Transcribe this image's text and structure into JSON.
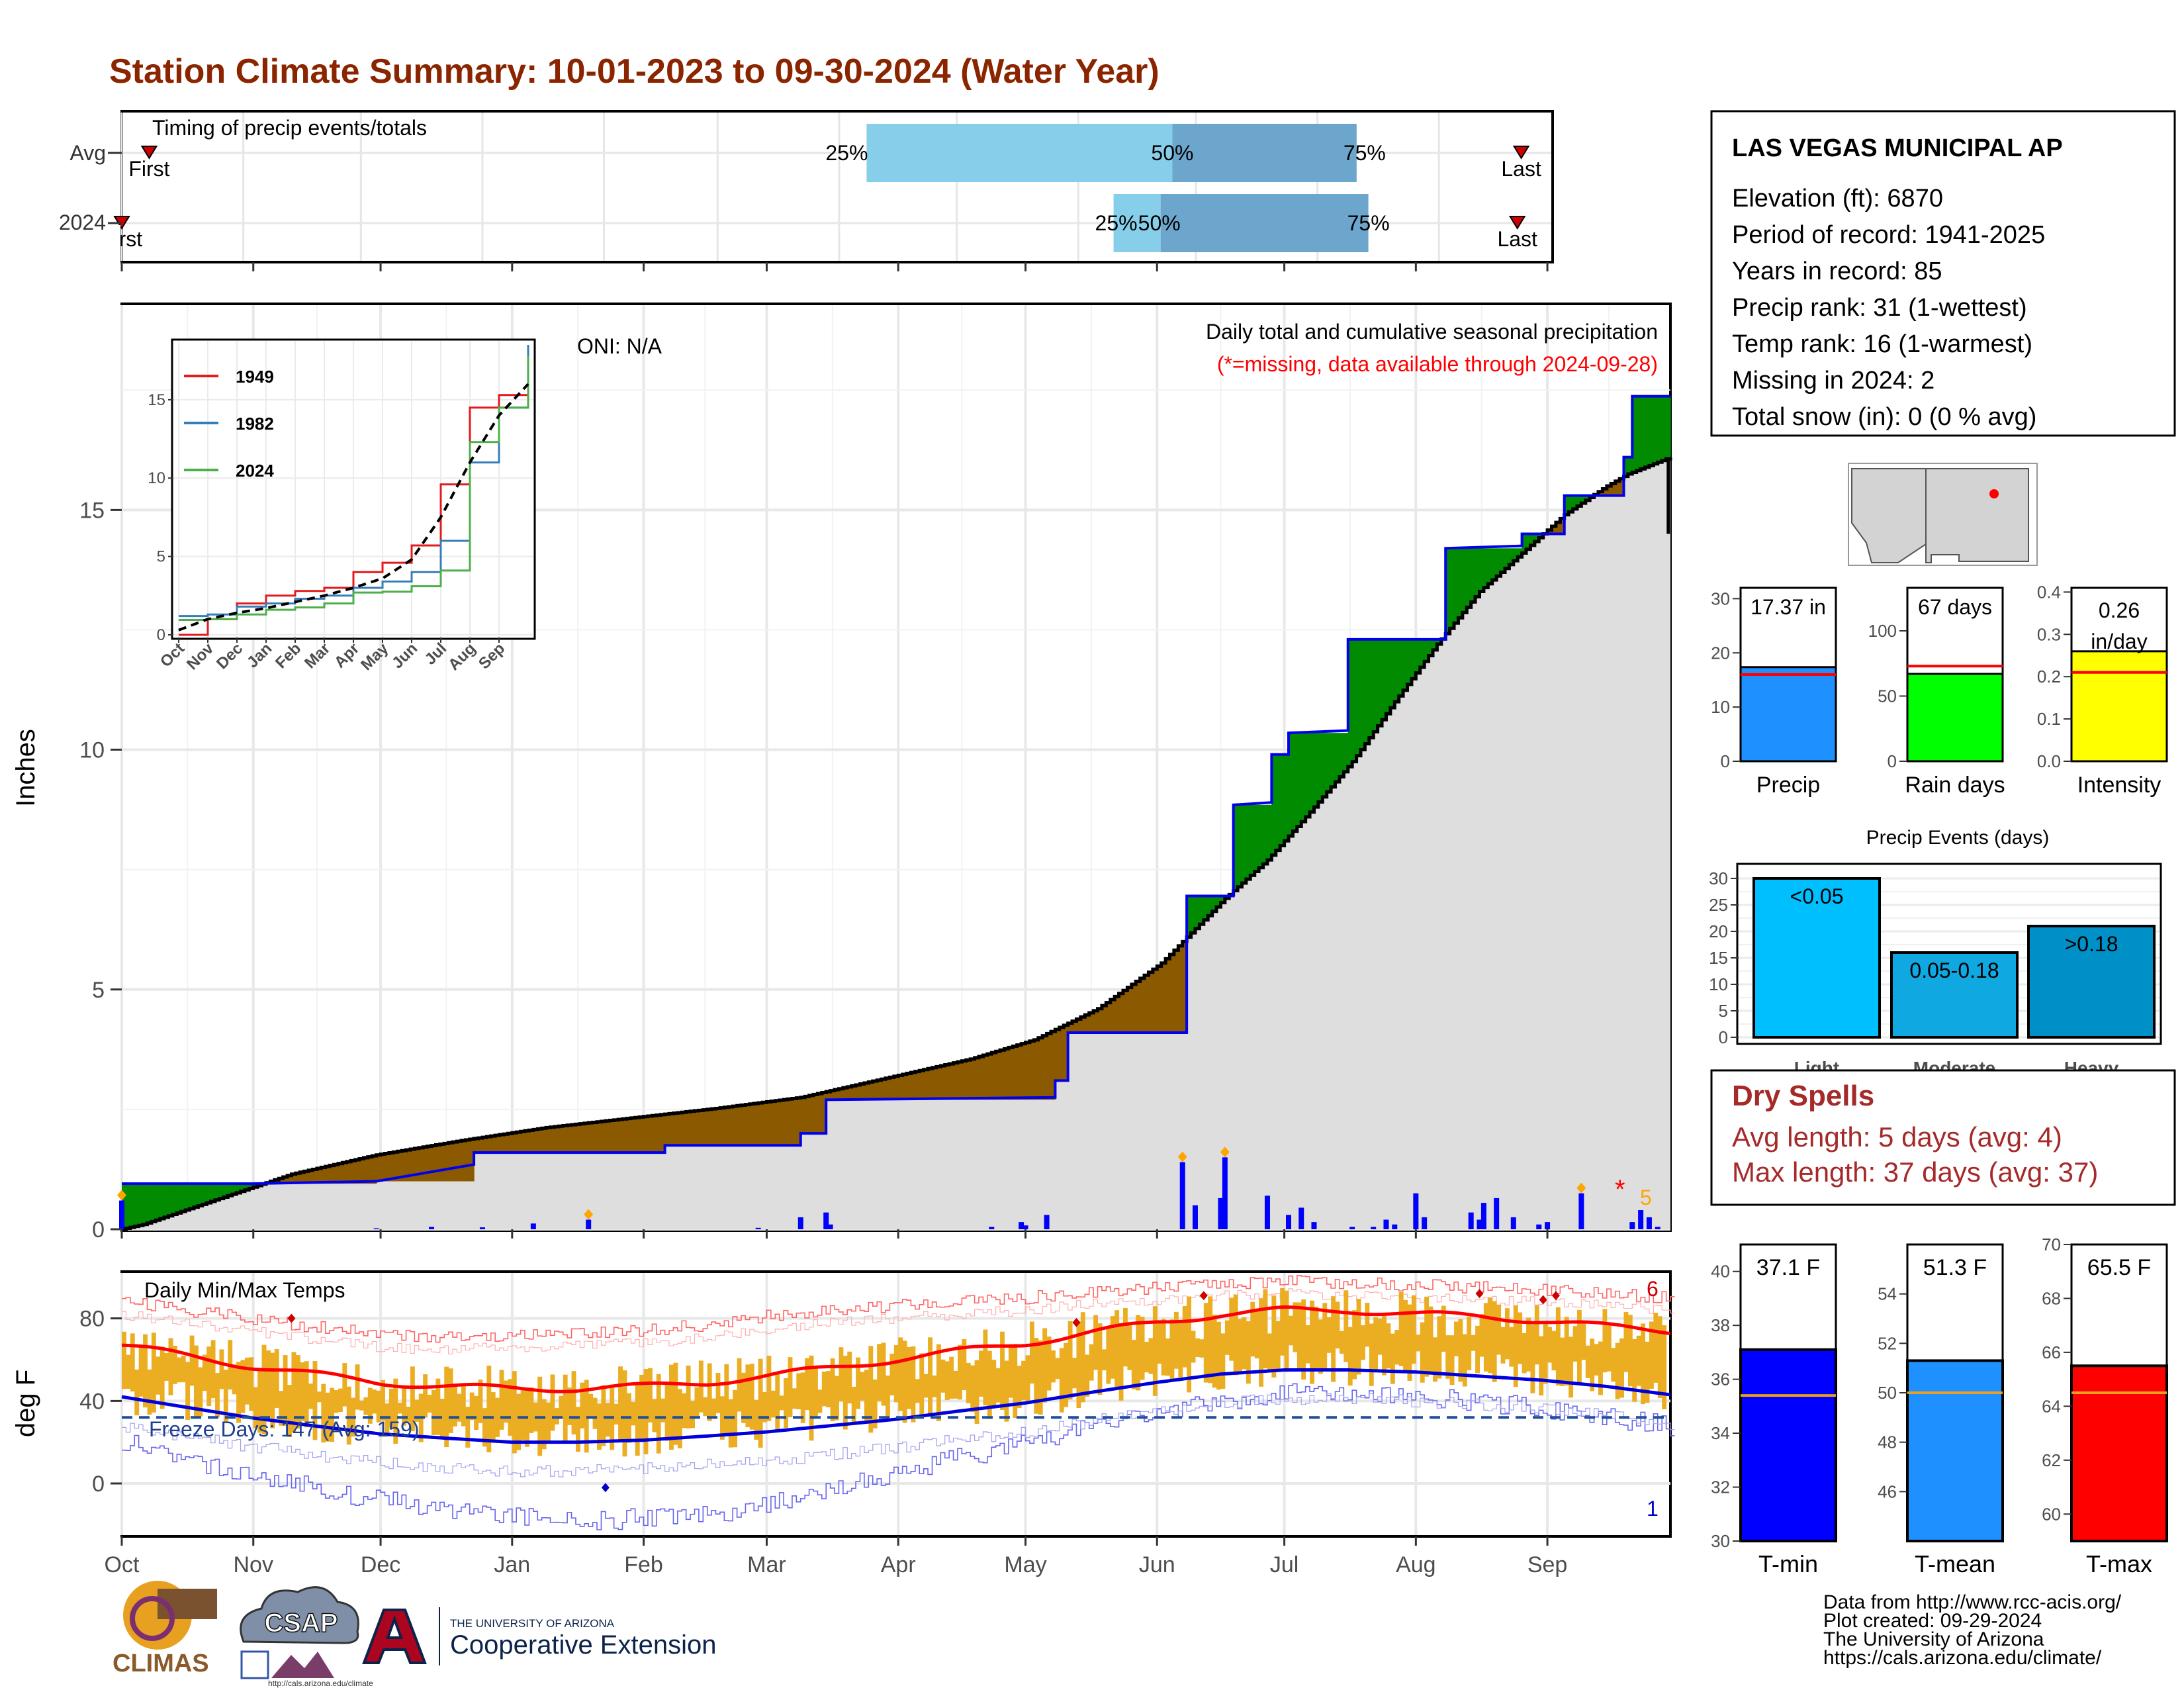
{
  "page": {
    "title": "Station Climate Summary: 10-01-2023 to 09-30-2024 (Water Year)",
    "colors": {
      "title": "#8B2500",
      "dry_spells": "#A52A2A",
      "missing_note": "#FF0000"
    }
  },
  "months": [
    "Oct",
    "Nov",
    "Dec",
    "Jan",
    "Feb",
    "Mar",
    "Apr",
    "May",
    "Jun",
    "Jul",
    "Aug",
    "Sep"
  ],
  "timing_panel": {
    "title": "Timing of precip events/totals",
    "rows": [
      {
        "label": "Avg",
        "first_label": "First",
        "last_label": "Last",
        "first_day": 7,
        "last_day": 357,
        "pct_labels": [
          "25%",
          "50%",
          "75%"
        ],
        "pct_days": [
          190,
          268,
          315
        ]
      },
      {
        "label": "2024",
        "first_label": "First",
        "last_label": "Last",
        "first_day": 0,
        "last_day": 356,
        "pct_labels": [
          "25%",
          "50%",
          "75%"
        ],
        "pct_days": [
          253,
          265,
          318
        ]
      }
    ]
  },
  "precip_panel": {
    "ylabel": "Inches",
    "ylim": [
      0,
      19
    ],
    "yticks": [
      0,
      5,
      10,
      15
    ],
    "title": "Daily total and cumulative seasonal precipitation",
    "note": "(*=missing, data available through 2024-09-28)",
    "oni": "ONI: N/A",
    "missing_count": "5",
    "missing_marker": "*",
    "inset": {
      "yticks": [
        0,
        5,
        10,
        15
      ],
      "ylim": [
        0,
        18.5
      ],
      "months": [
        "Oct",
        "Nov",
        "Dec",
        "Jan",
        "Feb",
        "Mar",
        "Apr",
        "May",
        "Jun",
        "Jul",
        "Aug",
        "Sep"
      ],
      "legend": [
        "1949",
        "1982",
        "2024"
      ]
    }
  },
  "temp_panel": {
    "ylabel": "deg F",
    "title": "Daily Min/Max Temps",
    "freeze_label": "Freeze Days: 147 (Avg: 159)",
    "freeze_line": 32,
    "yticks": [
      0,
      40,
      80
    ],
    "ylim": [
      -25,
      102
    ],
    "record_high_count": "6",
    "record_low_count": "1"
  },
  "station_box": {
    "name": "LAS VEGAS MUNICIPAL AP",
    "lines": [
      "Elevation (ft): 6870",
      "Period of record: 1941-2025",
      "Years in record: 85",
      "Precip rank: 31 (1-wettest)",
      "Temp rank: 16 (1-warmest)",
      "Missing in 2024: 2",
      "Total snow (in): 0 (0 % avg)"
    ]
  },
  "mini_bars": [
    {
      "label": "Precip",
      "value": 17.37,
      "value_label": "17.37 in",
      "avg": 16.0,
      "ylim": [
        0,
        32
      ],
      "yticks": [
        0,
        10,
        20,
        30
      ],
      "color": "#1E90FF"
    },
    {
      "label": "Rain days",
      "value": 67,
      "value_label": "67 days",
      "avg": 73,
      "ylim": [
        0,
        133
      ],
      "yticks": [
        0,
        50,
        100
      ],
      "color": "#00FF00"
    },
    {
      "label": "Intensity",
      "value": 0.26,
      "value_label": "0.26 in/day",
      "avg": 0.21,
      "ylim": [
        0,
        0.41
      ],
      "yticks": [
        "0.0",
        "0.1",
        "0.2",
        "0.3",
        "0.4"
      ],
      "color": "#FFFF00"
    }
  ],
  "precip_events": {
    "title": "Precip Events (days)",
    "yticks": [
      0,
      5,
      10,
      15,
      20,
      25,
      30
    ],
    "ylim": [
      0,
      32
    ],
    "categories": [
      "Light",
      "Moderate",
      "Heavy"
    ],
    "bar_labels": [
      "<0.05",
      "0.05-0.18",
      ">0.18"
    ],
    "values": [
      30,
      16,
      21
    ],
    "colors": [
      "#00BFFF",
      "#0FA8E0",
      "#0090C8"
    ]
  },
  "dry_spells": {
    "title": "Dry Spells",
    "lines": [
      "Avg length: 5 days (avg: 4)",
      "Max length: 37 days (avg: 37)"
    ]
  },
  "temp_bars": [
    {
      "label": "T-min",
      "value": 37.1,
      "value_label": "37.1 F",
      "avg": 35.4,
      "ylim": [
        30,
        41
      ],
      "yticks": [
        30,
        32,
        34,
        36,
        38,
        40
      ],
      "color": "#0000FF"
    },
    {
      "label": "T-mean",
      "value": 51.3,
      "value_label": "51.3 F",
      "avg": 50.0,
      "ylim": [
        44,
        56
      ],
      "yticks": [
        46,
        48,
        50,
        52,
        54
      ],
      "color": "#1E90FF"
    },
    {
      "label": "T-max",
      "value": 65.5,
      "value_label": "65.5 F",
      "avg": 64.5,
      "ylim": [
        59,
        70
      ],
      "yticks": [
        60,
        62,
        64,
        66,
        68,
        70
      ],
      "color": "#FF0000"
    }
  ],
  "footer": {
    "lines": [
      "Data from http://www.rcc-acis.org/",
      "Plot created: 09-29-2024",
      "The University of Arizona",
      "https://cals.arizona.edu/climate/"
    ],
    "climas": "CLIMAS",
    "csap": "CSAP",
    "csap_url": "http://cals.arizona.edu/climate",
    "ua_small": "THE UNIVERSITY OF ARIZONA",
    "ua_big": "Cooperative Extension"
  },
  "chart_data": [
    {
      "type": "area",
      "name": "cumulative-precip",
      "x_unit": "day of water year",
      "x": [
        0,
        5,
        20,
        40,
        60,
        80,
        100,
        120,
        140,
        160,
        170,
        185,
        200,
        215,
        230,
        245,
        260,
        270,
        280,
        290,
        300,
        310,
        320,
        330,
        340,
        350,
        355,
        365
      ],
      "avg_cumulative": [
        0,
        0.1,
        0.55,
        1.15,
        1.55,
        1.85,
        2.12,
        2.32,
        2.52,
        2.75,
        2.95,
        3.25,
        3.55,
        3.95,
        4.6,
        5.55,
        6.9,
        7.7,
        8.7,
        9.75,
        11.0,
        12.2,
        13.3,
        14.1,
        14.9,
        15.5,
        15.75,
        16.1
      ],
      "observed_steps": [
        [
          0,
          0.95
        ],
        [
          30,
          0.95
        ],
        [
          60,
          1.0
        ],
        [
          83,
          1.35
        ],
        [
          83,
          1.6
        ],
        [
          128,
          1.6
        ],
        [
          128,
          1.75
        ],
        [
          160,
          1.75
        ],
        [
          160,
          2.0
        ],
        [
          166,
          2.0
        ],
        [
          166,
          2.7
        ],
        [
          220,
          2.75
        ],
        [
          220,
          3.1
        ],
        [
          223,
          3.1
        ],
        [
          223,
          4.1
        ],
        [
          251,
          4.1
        ],
        [
          251,
          6.95
        ],
        [
          262,
          6.95
        ],
        [
          262,
          8.85
        ],
        [
          271,
          8.9
        ],
        [
          271,
          9.9
        ],
        [
          275,
          9.9
        ],
        [
          275,
          10.35
        ],
        [
          289,
          10.4
        ],
        [
          289,
          12.3
        ],
        [
          312,
          12.3
        ],
        [
          312,
          14.2
        ],
        [
          330,
          14.25
        ],
        [
          330,
          14.5
        ],
        [
          340,
          14.5
        ],
        [
          340,
          15.3
        ],
        [
          354,
          15.3
        ],
        [
          354,
          16.1
        ],
        [
          356,
          16.1
        ],
        [
          356,
          17.37
        ],
        [
          365,
          17.37
        ]
      ],
      "daily_precip": [
        [
          0,
          0.6
        ],
        [
          60,
          0.02
        ],
        [
          73,
          0.05
        ],
        [
          85,
          0.04
        ],
        [
          97,
          0.12
        ],
        [
          110,
          0.2
        ],
        [
          150,
          0.03
        ],
        [
          160,
          0.25
        ],
        [
          166,
          0.35
        ],
        [
          167,
          0.1
        ],
        [
          205,
          0.05
        ],
        [
          212,
          0.15
        ],
        [
          213,
          0.08
        ],
        [
          218,
          0.3
        ],
        [
          250,
          1.4
        ],
        [
          253,
          0.5
        ],
        [
          259,
          0.65
        ],
        [
          260,
          1.5
        ],
        [
          270,
          0.7
        ],
        [
          275,
          0.3
        ],
        [
          278,
          0.45
        ],
        [
          281,
          0.15
        ],
        [
          290,
          0.05
        ],
        [
          295,
          0.05
        ],
        [
          298,
          0.2
        ],
        [
          300,
          0.1
        ],
        [
          305,
          0.75
        ],
        [
          307,
          0.25
        ],
        [
          318,
          0.35
        ],
        [
          320,
          0.2
        ],
        [
          321,
          0.55
        ],
        [
          324,
          0.65
        ],
        [
          328,
          0.25
        ],
        [
          334,
          0.1
        ],
        [
          336,
          0.15
        ],
        [
          344,
          0.75
        ],
        [
          356,
          0.15
        ],
        [
          358,
          0.4
        ],
        [
          360,
          0.25
        ],
        [
          362,
          0.05
        ]
      ]
    },
    {
      "type": "line",
      "name": "inset-cumulative-comparison",
      "x": [
        "Oct",
        "Nov",
        "Dec",
        "Jan",
        "Feb",
        "Mar",
        "Apr",
        "May",
        "Jun",
        "Jul",
        "Aug",
        "Sep",
        "Sep-end"
      ],
      "series": [
        {
          "name": "1949",
          "values": [
            0,
            1.0,
            2.0,
            2.5,
            2.8,
            3.0,
            4.0,
            4.6,
            5.7,
            9.6,
            14.5,
            15.3,
            18.0
          ]
        },
        {
          "name": "1982",
          "values": [
            1.2,
            1.3,
            1.8,
            2.0,
            2.3,
            2.5,
            3.0,
            3.4,
            4.0,
            6.0,
            11.0,
            14.5,
            18.5
          ]
        },
        {
          "name": "2024",
          "values": [
            0.95,
            1.0,
            1.3,
            1.6,
            1.75,
            2.0,
            2.7,
            2.75,
            3.1,
            4.1,
            12.3,
            14.5,
            17.8
          ]
        },
        {
          "name": "",
          "values": [
            0.3,
            1.0,
            1.4,
            1.7,
            2.1,
            2.5,
            3.0,
            3.6,
            4.8,
            7.5,
            11.0,
            14.0,
            16.0
          ]
        }
      ]
    },
    {
      "type": "line",
      "name": "daily-temps",
      "x_unit": "day of water year",
      "x": [
        0,
        15,
        30,
        45,
        61,
        76,
        92,
        107,
        123,
        138,
        152,
        167,
        182,
        197,
        213,
        228,
        244,
        259,
        274,
        289,
        305,
        320,
        335,
        350,
        365
      ],
      "series": [
        {
          "name": "avg-max",
          "values": [
            67,
            62,
            57,
            53,
            49,
            47,
            46,
            46,
            47,
            49,
            52,
            56,
            60,
            64,
            68,
            73,
            78,
            82,
            84,
            84,
            82,
            81,
            79,
            76,
            74
          ]
        },
        {
          "name": "avg-min",
          "values": [
            42,
            37,
            32,
            28,
            24,
            22,
            20,
            20,
            21,
            23,
            25,
            28,
            31,
            35,
            39,
            44,
            49,
            53,
            55,
            55,
            54,
            52,
            50,
            47,
            43
          ]
        },
        {
          "name": "record-high",
          "values": [
            88,
            84,
            80,
            76,
            72,
            71,
            72,
            73,
            74,
            77,
            81,
            84,
            86,
            88,
            90,
            93,
            95,
            97,
            98,
            97,
            96,
            95,
            94,
            92,
            90
          ]
        },
        {
          "name": "record-low",
          "values": [
            21,
            12,
            5,
            -2,
            -8,
            -12,
            -16,
            -18,
            -17,
            -15,
            -10,
            -3,
            5,
            12,
            20,
            28,
            35,
            40,
            44,
            44,
            42,
            40,
            36,
            32,
            28
          ]
        }
      ],
      "observed_range_approx": {
        "max_envelope_F": [
          55,
          95
        ],
        "min_envelope_F": [
          -2,
          62
        ]
      }
    }
  ]
}
